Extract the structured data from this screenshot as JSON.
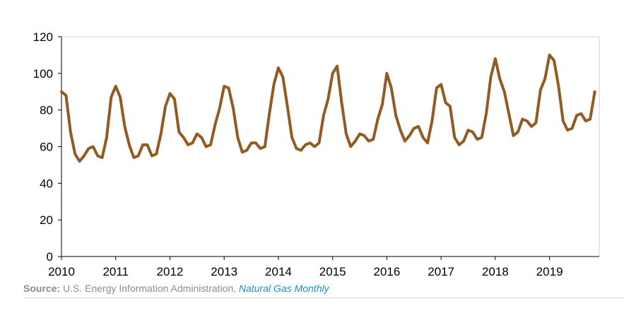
{
  "chart_data": {
    "type": "line",
    "title": "",
    "xlabel": "",
    "ylabel": "",
    "xlim": [
      2010,
      2019.917
    ],
    "ylim": [
      0,
      120
    ],
    "yticks": [
      0,
      20,
      40,
      60,
      80,
      100,
      120
    ],
    "xticks": [
      "2010",
      "2011",
      "2012",
      "2013",
      "2014",
      "2015",
      "2016",
      "2017",
      "2018",
      "2019"
    ],
    "grid": false,
    "legend": "none",
    "series": [
      {
        "color": "#935a22",
        "x_start": 2010,
        "x_step_months": 1,
        "values": [
          90,
          88,
          68,
          56,
          52,
          55,
          59,
          60,
          55,
          54,
          65,
          87,
          93,
          87,
          71,
          61,
          54,
          55,
          61,
          61,
          55,
          56,
          67,
          82,
          89,
          86,
          68,
          65,
          61,
          62,
          67,
          65,
          60,
          61,
          72,
          81,
          93,
          92,
          81,
          65,
          57,
          58,
          62,
          62,
          59,
          60,
          78,
          94,
          103,
          98,
          82,
          65,
          59,
          58,
          61,
          62,
          60,
          62,
          77,
          86,
          100,
          104,
          84,
          67,
          60,
          63,
          67,
          66,
          63,
          64,
          75,
          83,
          100,
          92,
          77,
          69,
          63,
          66,
          70,
          71,
          65,
          62,
          74,
          92,
          94,
          84,
          82,
          65,
          61,
          63,
          69,
          68,
          64,
          65,
          78,
          98,
          108,
          97,
          90,
          78,
          66,
          68,
          75,
          74,
          71,
          73,
          91,
          97,
          110,
          107,
          93,
          74,
          69,
          70,
          77,
          78,
          74,
          75,
          90
        ]
      }
    ]
  },
  "source": {
    "label": "Source:",
    "text": " U.S. Energy Information Administration, ",
    "publication": "Natural Gas Monthly"
  }
}
